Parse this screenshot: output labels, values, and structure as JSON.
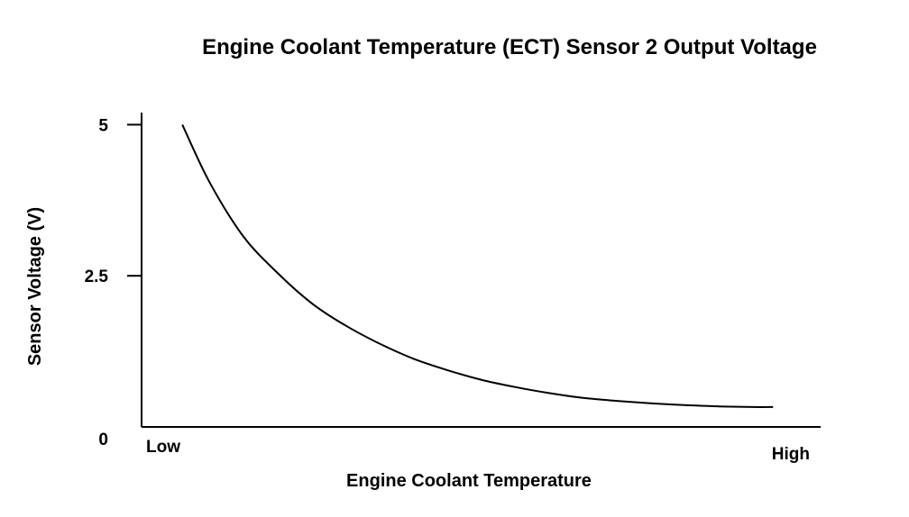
{
  "chart_data": {
    "type": "line",
    "title": "Engine Coolant Temperature (ECT) Sensor 2 Output Voltage",
    "xlabel": "Engine Coolant Temperature",
    "ylabel": "Sensor Voltage (V)",
    "x_tick_labels": [
      "Low",
      "High"
    ],
    "y_ticks": [
      {
        "value": 0,
        "label": "0"
      },
      {
        "value": 2.5,
        "label": "2.5"
      },
      {
        "value": 5,
        "label": "5"
      }
    ],
    "xlim": [
      0,
      1
    ],
    "ylim": [
      0,
      5.2
    ],
    "grid": false,
    "series": [
      {
        "x": [
          0.06,
          0.1,
          0.15,
          0.2,
          0.25,
          0.3,
          0.35,
          0.4,
          0.45,
          0.5,
          0.55,
          0.6,
          0.65,
          0.7,
          0.75,
          0.8,
          0.85,
          0.9,
          0.93
        ],
        "y": [
          5.0,
          4.05,
          3.15,
          2.55,
          2.05,
          1.68,
          1.38,
          1.13,
          0.94,
          0.78,
          0.66,
          0.56,
          0.48,
          0.43,
          0.39,
          0.36,
          0.34,
          0.33,
          0.33
        ]
      }
    ]
  }
}
